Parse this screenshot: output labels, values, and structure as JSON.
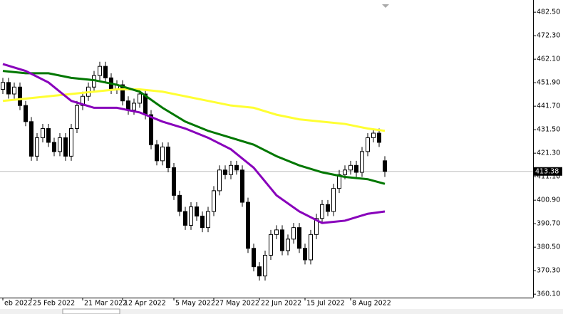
{
  "chart_data": {
    "type": "candlestick",
    "categories": [
      "eb 2022",
      null,
      null,
      null,
      null,
      "25 Feb 2022",
      null,
      null,
      null,
      null,
      null,
      null,
      null,
      null,
      "21 Mar 2022",
      null,
      null,
      null,
      null,
      null,
      null,
      "12 Apr 2022",
      null,
      null,
      null,
      null,
      null,
      null,
      null,
      null,
      "5 May 2022",
      null,
      null,
      null,
      null,
      null,
      null,
      "27 May 2022",
      null,
      null,
      null,
      null,
      null,
      null,
      null,
      "22 Jun 2022",
      null,
      null,
      null,
      null,
      null,
      null,
      null,
      "15 Jul 2022",
      null,
      null,
      null,
      null,
      null,
      null,
      null,
      "8 Aug 2022",
      null,
      null,
      null,
      null,
      null,
      null
    ],
    "open": [
      449,
      452,
      447,
      450,
      442,
      435,
      420,
      428,
      432,
      426,
      422,
      428,
      420,
      432,
      442,
      446,
      450,
      455,
      459,
      454,
      449,
      451,
      444,
      440,
      443,
      447,
      438,
      425,
      418,
      424,
      415,
      403,
      396,
      390,
      398,
      394,
      389,
      396,
      405,
      414,
      412,
      416,
      414,
      400,
      380,
      372,
      368,
      377,
      386,
      388,
      379,
      384,
      389,
      380,
      375,
      386,
      393,
      399,
      396,
      406,
      412,
      414,
      416,
      413,
      422,
      428,
      430,
      418
    ],
    "high": [
      454,
      454,
      452,
      452,
      444,
      437,
      430,
      434,
      434,
      428,
      430,
      430,
      434,
      444,
      448,
      452,
      457,
      461,
      461,
      456,
      453,
      453,
      446,
      445,
      449,
      449,
      440,
      427,
      426,
      426,
      417,
      405,
      398,
      400,
      400,
      396,
      398,
      407,
      416,
      416,
      418,
      418,
      416,
      402,
      382,
      374,
      379,
      388,
      390,
      390,
      386,
      391,
      391,
      382,
      388,
      395,
      401,
      401,
      408,
      414,
      416,
      418,
      418,
      424,
      430,
      432,
      432,
      420
    ],
    "low": [
      447,
      445,
      445,
      440,
      433,
      418,
      418,
      426,
      424,
      420,
      420,
      418,
      418,
      430,
      440,
      444,
      448,
      453,
      452,
      447,
      447,
      442,
      438,
      438,
      441,
      436,
      423,
      416,
      416,
      413,
      401,
      394,
      388,
      388,
      392,
      387,
      387,
      394,
      403,
      410,
      410,
      412,
      398,
      378,
      370,
      366,
      366,
      375,
      384,
      377,
      377,
      382,
      378,
      373,
      373,
      384,
      391,
      394,
      394,
      404,
      410,
      412,
      411,
      411,
      420,
      426,
      424,
      411
    ],
    "close": [
      452,
      447,
      450,
      442,
      435,
      420,
      428,
      432,
      426,
      422,
      428,
      420,
      432,
      442,
      446,
      450,
      455,
      459,
      454,
      449,
      451,
      444,
      440,
      443,
      447,
      438,
      425,
      418,
      424,
      415,
      403,
      396,
      390,
      398,
      394,
      389,
      396,
      405,
      414,
      412,
      416,
      414,
      400,
      380,
      372,
      368,
      377,
      386,
      388,
      379,
      384,
      389,
      380,
      375,
      386,
      393,
      399,
      396,
      406,
      412,
      414,
      416,
      413,
      422,
      428,
      430,
      426,
      413.38
    ],
    "up_color": "#ffffff",
    "down_color": "#000000",
    "series": [
      {
        "color": "#ffff33",
        "x": [
          0,
          4,
          8,
          12,
          16,
          20,
          24,
          28,
          32,
          36,
          40,
          44,
          48,
          52,
          56,
          60,
          64,
          67
        ],
        "values": [
          444,
          445,
          446,
          447,
          448,
          449,
          449,
          448,
          446,
          444,
          442,
          441,
          438,
          436,
          435,
          434,
          432,
          431
        ]
      },
      {
        "color": "#007700",
        "x": [
          0,
          4,
          8,
          12,
          16,
          20,
          24,
          28,
          32,
          36,
          40,
          44,
          48,
          52,
          56,
          60,
          64,
          67
        ],
        "values": [
          457,
          456,
          456,
          454,
          453,
          451,
          448,
          441,
          435,
          431,
          428,
          425,
          420,
          416,
          413,
          411,
          410,
          408
        ]
      },
      {
        "color": "#8800bb",
        "x": [
          0,
          4,
          8,
          12,
          16,
          20,
          24,
          28,
          32,
          36,
          40,
          44,
          48,
          52,
          56,
          60,
          64,
          67
        ],
        "values": [
          460,
          457,
          452,
          444,
          441,
          441,
          439,
          435,
          432,
          428,
          423,
          415,
          403,
          396,
          391,
          392,
          395,
          396
        ]
      }
    ],
    "ylim": [
      358.6,
      487.8
    ],
    "yticks": [
      {
        "value": 482.5,
        "label": "482.50"
      },
      {
        "value": 472.3,
        "label": "472.30"
      },
      {
        "value": 462.1,
        "label": "462.10"
      },
      {
        "value": 451.9,
        "label": "451.90"
      },
      {
        "value": 441.7,
        "label": "441.70"
      },
      {
        "value": 431.5,
        "label": "431.50"
      },
      {
        "value": 421.3,
        "label": "421.30"
      },
      {
        "value": 411.1,
        "label": "411.10"
      },
      {
        "value": 400.9,
        "label": "400.90"
      },
      {
        "value": 390.7,
        "label": "390.70"
      },
      {
        "value": 380.5,
        "label": "380.50"
      },
      {
        "value": 370.3,
        "label": "370.30"
      },
      {
        "value": 360.1,
        "label": "360.10"
      }
    ]
  }
}
